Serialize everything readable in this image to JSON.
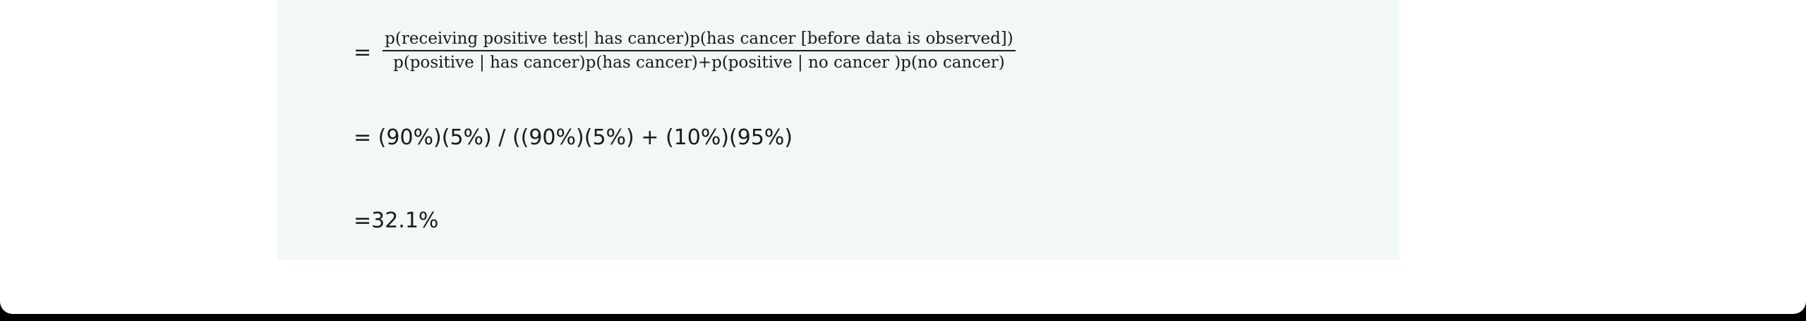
{
  "equation": {
    "equals_sign": "=",
    "numerator": "p(receiving positive test| has cancer)p(has cancer [before data is observed])",
    "denominator": "p(positive | has cancer)p(has cancer)+p(positive | no cancer )p(no cancer)"
  },
  "calculation": "= (90%)(5%) / ((90%)(5%) + (10%)(95%)",
  "result": "=32.1%",
  "colors": {
    "panel_background": "#f2f8f6",
    "text": "#1a1a1a"
  }
}
